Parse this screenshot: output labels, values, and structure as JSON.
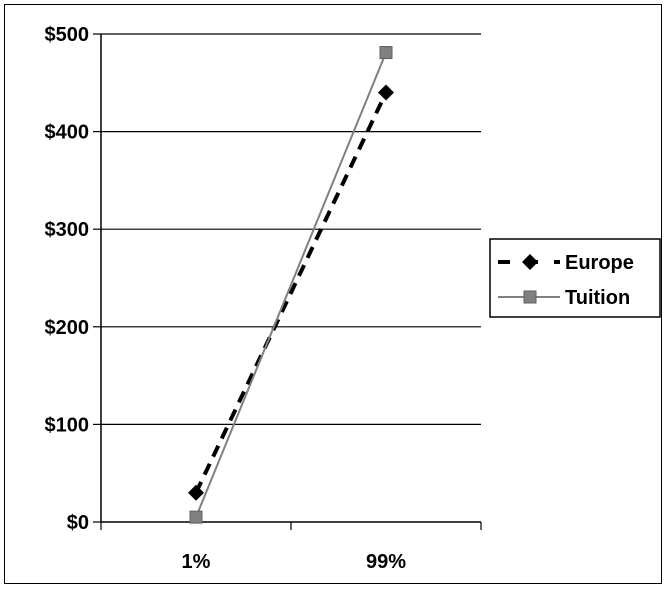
{
  "chart_data": {
    "type": "line",
    "title": "",
    "xlabel": "",
    "ylabel": "",
    "categories": [
      "1%",
      "99%"
    ],
    "ylim": [
      0,
      500
    ],
    "yticks": [
      0,
      100,
      200,
      300,
      400,
      500
    ],
    "ytick_labels": [
      "$0",
      "$100",
      "$200",
      "$300",
      "$400",
      "$500"
    ],
    "grid": true,
    "legend_position": "right",
    "series": [
      {
        "name": "Europe",
        "values": [
          30,
          440
        ],
        "line_style": "dashed",
        "marker": "diamond",
        "color": "#000000"
      },
      {
        "name": "Tuition",
        "values": [
          5,
          481
        ],
        "line_style": "solid",
        "marker": "square",
        "color": "#808080"
      }
    ]
  }
}
